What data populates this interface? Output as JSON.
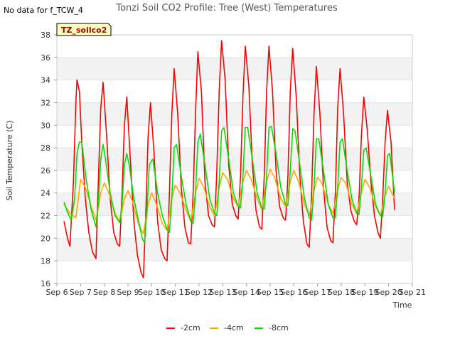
{
  "header": {
    "no_data_note": "No data for f_TCW_4",
    "title": "Tonzi Soil CO2 Profile: Tree (West) Temperatures",
    "badge": "TZ_soilco2"
  },
  "chart_data": {
    "type": "line",
    "title": "Tonzi Soil CO2 Profile: Tree (West) Temperatures",
    "xlabel": "Time",
    "ylabel": "Soil Temperature (C)",
    "xlim": [
      6,
      21
    ],
    "ylim": [
      16,
      38
    ],
    "x_ticks": [
      6,
      7,
      8,
      9,
      10,
      11,
      12,
      13,
      14,
      15,
      16,
      17,
      18,
      19,
      20,
      21
    ],
    "x_tick_labels": [
      "Sep 6",
      "Sep 7",
      "Sep 8",
      "Sep 9",
      "Sep 10",
      "Sep 11",
      "Sep 12",
      "Sep 13",
      "Sep 14",
      "Sep 15",
      "Sep 16",
      "Sep 17",
      "Sep 18",
      "Sep 19",
      "Sep 20",
      "Sep 21"
    ],
    "y_ticks": [
      16,
      18,
      20,
      22,
      24,
      26,
      28,
      30,
      32,
      34,
      36,
      38
    ],
    "y_tick_labels": [
      "16",
      "18",
      "20",
      "22",
      "24",
      "26",
      "28",
      "30",
      "32",
      "34",
      "36",
      "38"
    ],
    "grid": "horizontal bands",
    "legend_position": "bottom-center",
    "series": [
      {
        "name": "-2cm",
        "color": "#ff0000",
        "x": [
          6.3,
          6.45,
          6.55,
          6.7,
          6.8,
          6.85,
          6.95,
          7.05,
          7.2,
          7.35,
          7.5,
          7.65,
          7.75,
          7.85,
          7.95,
          8.1,
          8.25,
          8.4,
          8.55,
          8.65,
          8.75,
          8.85,
          8.95,
          9.1,
          9.25,
          9.4,
          9.55,
          9.65,
          9.75,
          9.85,
          9.95,
          10.1,
          10.25,
          10.4,
          10.55,
          10.65,
          10.75,
          10.85,
          10.95,
          11.1,
          11.25,
          11.4,
          11.55,
          11.65,
          11.75,
          11.85,
          11.95,
          12.1,
          12.25,
          12.4,
          12.55,
          12.65,
          12.75,
          12.85,
          12.95,
          13.1,
          13.25,
          13.4,
          13.55,
          13.65,
          13.75,
          13.85,
          13.95,
          14.1,
          14.25,
          14.4,
          14.55,
          14.65,
          14.75,
          14.85,
          14.95,
          15.1,
          15.25,
          15.4,
          15.55,
          15.65,
          15.75,
          15.85,
          15.95,
          16.1,
          16.25,
          16.4,
          16.55,
          16.65,
          16.75,
          16.85,
          16.95,
          17.1,
          17.25,
          17.4,
          17.55,
          17.65,
          17.75,
          17.85,
          17.95,
          18.1,
          18.25,
          18.4,
          18.55,
          18.65,
          18.75,
          18.85,
          18.95,
          19.1,
          19.25,
          19.4,
          19.55,
          19.65,
          19.75,
          19.85,
          19.95,
          20.1,
          20.25
        ],
        "y": [
          21.5,
          20.0,
          19.3,
          25.0,
          32.0,
          34.0,
          33.0,
          28.5,
          23.5,
          20.5,
          18.8,
          18.2,
          25.0,
          31.5,
          33.8,
          29.0,
          23.5,
          20.5,
          19.5,
          19.3,
          24.0,
          30.0,
          32.5,
          27.0,
          21.5,
          18.5,
          17.0,
          16.5,
          22.0,
          29.0,
          32.0,
          27.5,
          21.5,
          19.0,
          18.2,
          18.0,
          24.0,
          31.0,
          35.0,
          31.0,
          24.5,
          21.0,
          19.6,
          19.5,
          24.0,
          31.0,
          36.5,
          33.0,
          25.0,
          22.0,
          21.2,
          21.0,
          26.0,
          33.0,
          37.5,
          34.0,
          26.5,
          23.0,
          22.0,
          21.7,
          25.5,
          32.5,
          37.0,
          33.5,
          26.5,
          22.5,
          21.0,
          20.8,
          25.5,
          33.0,
          37.0,
          33.0,
          26.0,
          22.8,
          21.8,
          21.6,
          25.5,
          33.0,
          36.8,
          32.5,
          25.5,
          21.5,
          19.5,
          19.2,
          24.0,
          31.0,
          35.2,
          31.0,
          24.5,
          21.0,
          19.8,
          19.6,
          24.0,
          31.5,
          35.0,
          31.0,
          25.0,
          22.5,
          21.5,
          21.2,
          23.5,
          29.0,
          32.5,
          29.5,
          25.0,
          22.0,
          20.5,
          20.0,
          23.5,
          28.5,
          31.3,
          28.5,
          22.5
        ]
      },
      {
        "name": "-4cm",
        "color": "#ffa500",
        "x": [
          6.3,
          6.55,
          6.8,
          7.0,
          7.2,
          7.45,
          7.65,
          7.85,
          8.0,
          8.2,
          8.45,
          8.65,
          8.85,
          9.0,
          9.2,
          9.45,
          9.65,
          9.85,
          10.0,
          10.2,
          10.45,
          10.65,
          10.85,
          11.0,
          11.2,
          11.45,
          11.65,
          11.85,
          12.0,
          12.2,
          12.45,
          12.65,
          12.85,
          13.0,
          13.2,
          13.45,
          13.65,
          13.85,
          14.0,
          14.2,
          14.45,
          14.65,
          14.85,
          15.0,
          15.2,
          15.45,
          15.65,
          15.85,
          16.0,
          16.2,
          16.45,
          16.65,
          16.85,
          17.0,
          17.2,
          17.45,
          17.65,
          17.85,
          18.0,
          18.2,
          18.45,
          18.65,
          18.85,
          19.0,
          19.2,
          19.45,
          19.65,
          19.85,
          20.0,
          20.25
        ],
        "y": [
          23.0,
          22.2,
          21.8,
          25.2,
          24.5,
          22.8,
          21.6,
          24.0,
          24.9,
          24.0,
          22.3,
          21.4,
          23.5,
          24.2,
          23.2,
          21.2,
          20.4,
          23.0,
          24.0,
          23.0,
          21.3,
          20.7,
          23.5,
          24.7,
          24.0,
          22.5,
          21.5,
          24.0,
          25.3,
          24.5,
          22.8,
          22.0,
          24.5,
          25.8,
          25.2,
          23.5,
          22.8,
          25.0,
          26.0,
          25.2,
          23.5,
          22.5,
          25.0,
          26.1,
          25.3,
          23.5,
          22.8,
          25.0,
          26.0,
          25.0,
          23.0,
          22.0,
          24.2,
          25.4,
          24.8,
          23.0,
          22.2,
          24.3,
          25.4,
          24.8,
          23.0,
          22.2,
          24.0,
          25.2,
          24.5,
          22.8,
          22.0,
          23.8,
          24.6,
          23.5
        ]
      },
      {
        "name": "-8cm",
        "color": "#00e000",
        "x": [
          6.3,
          6.45,
          6.6,
          6.75,
          6.85,
          6.95,
          7.05,
          7.25,
          7.45,
          7.65,
          7.75,
          7.85,
          7.95,
          8.05,
          8.25,
          8.45,
          8.65,
          8.75,
          8.85,
          8.95,
          9.05,
          9.25,
          9.45,
          9.6,
          9.7,
          9.8,
          9.9,
          10.05,
          10.25,
          10.45,
          10.65,
          10.75,
          10.85,
          10.95,
          11.05,
          11.25,
          11.45,
          11.65,
          11.75,
          11.85,
          11.95,
          12.05,
          12.25,
          12.45,
          12.65,
          12.75,
          12.85,
          12.95,
          13.05,
          13.25,
          13.45,
          13.65,
          13.75,
          13.85,
          13.95,
          14.05,
          14.25,
          14.45,
          14.65,
          14.75,
          14.85,
          14.95,
          15.05,
          15.25,
          15.45,
          15.65,
          15.75,
          15.85,
          15.95,
          16.05,
          16.25,
          16.45,
          16.65,
          16.75,
          16.85,
          16.95,
          17.05,
          17.25,
          17.45,
          17.65,
          17.75,
          17.85,
          17.95,
          18.05,
          18.25,
          18.45,
          18.65,
          18.75,
          18.85,
          18.95,
          19.05,
          19.25,
          19.45,
          19.65,
          19.75,
          19.85,
          19.95,
          20.05,
          20.25
        ],
        "y": [
          23.2,
          22.3,
          21.6,
          23.5,
          27.5,
          28.5,
          28.5,
          25.0,
          22.5,
          21.0,
          23.0,
          27.0,
          28.3,
          27.0,
          24.0,
          22.0,
          21.4,
          23.0,
          26.5,
          27.5,
          26.5,
          23.5,
          21.5,
          20.0,
          19.6,
          22.5,
          26.5,
          27.0,
          24.0,
          22.0,
          20.8,
          20.5,
          23.5,
          28.0,
          28.3,
          25.5,
          23.0,
          21.5,
          21.3,
          24.0,
          28.5,
          29.2,
          26.5,
          23.5,
          22.2,
          22.0,
          25.0,
          29.5,
          29.8,
          27.0,
          24.0,
          22.8,
          22.7,
          25.5,
          29.8,
          29.8,
          27.0,
          24.0,
          22.7,
          22.6,
          25.5,
          29.8,
          29.9,
          27.5,
          24.5,
          23.0,
          22.9,
          26.0,
          29.7,
          29.5,
          26.5,
          23.5,
          21.8,
          21.6,
          24.5,
          28.8,
          28.8,
          26.0,
          23.0,
          21.8,
          21.8,
          24.5,
          28.5,
          28.8,
          26.0,
          23.5,
          22.2,
          22.1,
          24.5,
          27.8,
          28.0,
          25.5,
          23.0,
          22.0,
          21.9,
          24.0,
          27.3,
          27.5,
          24.0
        ]
      }
    ]
  }
}
